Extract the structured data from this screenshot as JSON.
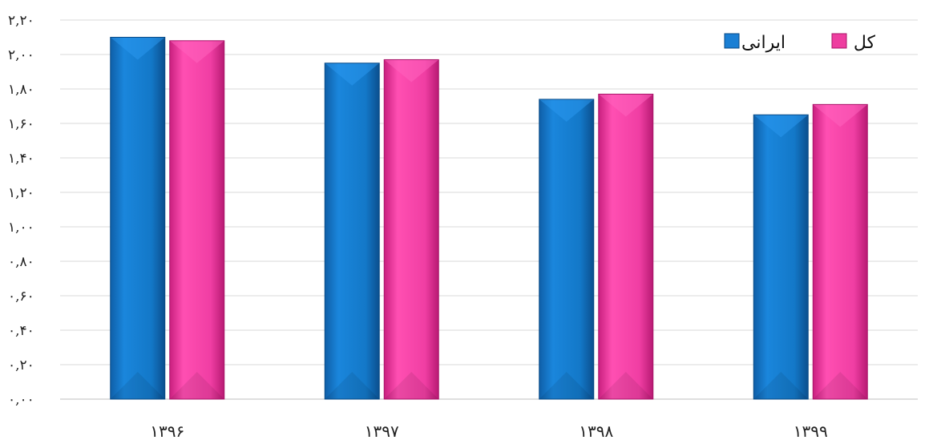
{
  "chart_data": {
    "type": "bar",
    "categories": [
      "۱۳۹۶",
      "۱۳۹۷",
      "۱۳۹۸",
      "۱۳۹۹"
    ],
    "series": [
      {
        "name": "ایرانی",
        "color": "#1a7fd4",
        "values": [
          2.1,
          1.95,
          1.74,
          1.65
        ]
      },
      {
        "name": "کل",
        "color": "#ee3ea0",
        "values": [
          2.08,
          1.97,
          1.77,
          1.71
        ]
      }
    ],
    "y_ticks": [
      {
        "value": 0.0,
        "label": "۰,۰۰"
      },
      {
        "value": 0.2,
        "label": "۰,۲۰"
      },
      {
        "value": 0.4,
        "label": "۰,۴۰"
      },
      {
        "value": 0.6,
        "label": "۰,۶۰"
      },
      {
        "value": 0.8,
        "label": "۰,۸۰"
      },
      {
        "value": 1.0,
        "label": "۱,۰۰"
      },
      {
        "value": 1.2,
        "label": "۱,۲۰"
      },
      {
        "value": 1.4,
        "label": "۱,۴۰"
      },
      {
        "value": 1.6,
        "label": "۱,۶۰"
      },
      {
        "value": 1.8,
        "label": "۱,۸۰"
      },
      {
        "value": 2.0,
        "label": "۲,۰۰"
      },
      {
        "value": 2.2,
        "label": "۲,۲۰"
      }
    ],
    "ylim": [
      0,
      2.2
    ],
    "grid": true,
    "legend_position": "top-right"
  }
}
